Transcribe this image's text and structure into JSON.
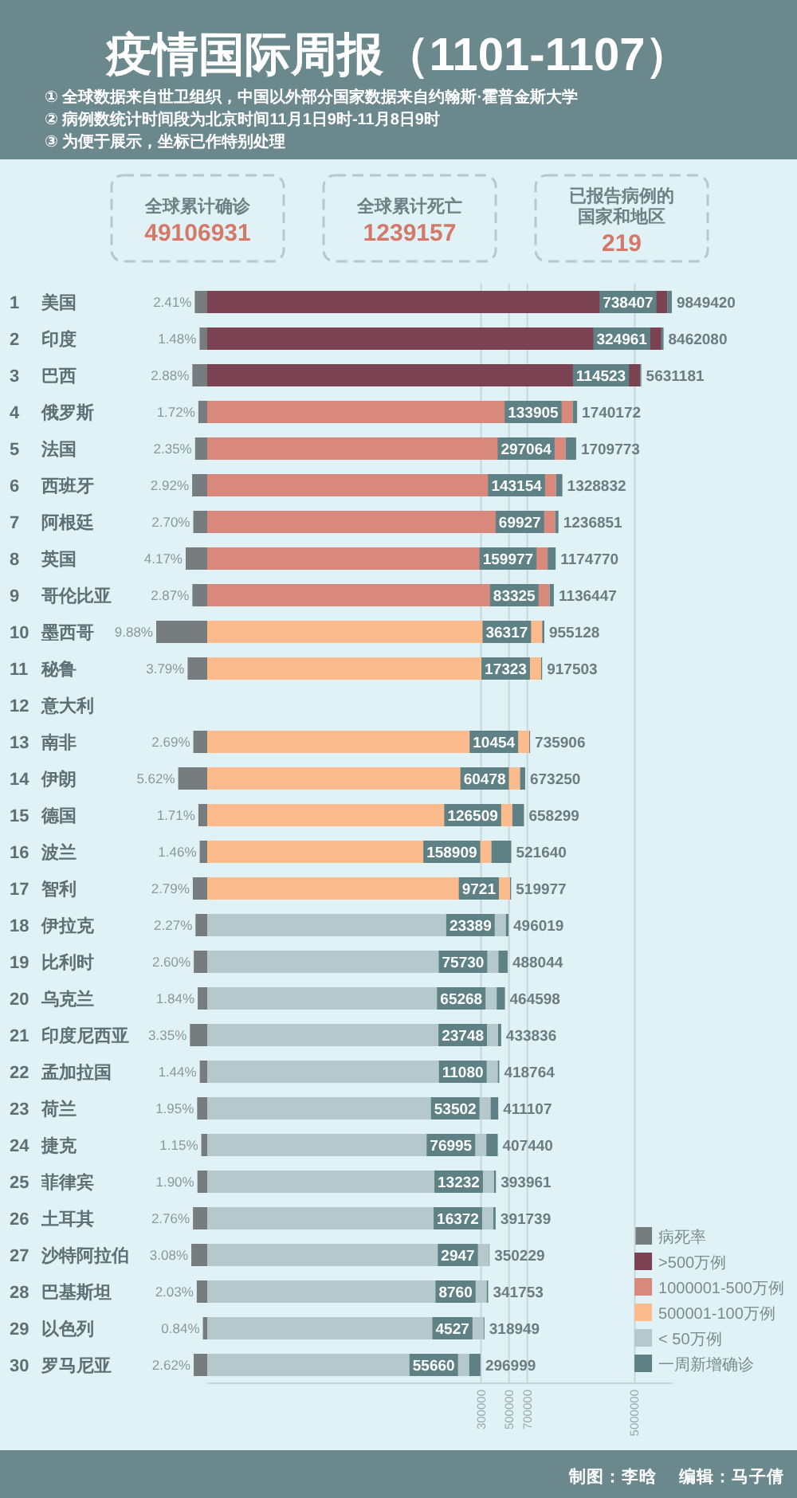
{
  "chart_data": [
    {
      "type": "bar",
      "orientation": "horizontal",
      "title": "疫情国际周报（1101-1107）",
      "annotations": [
        "① 全球数据来自世卫组织，中国以外部分国家数据来自约翰斯·霍普金斯大学",
        "② 病例数统计时间段为北京时间11月1日9时-11月8日9时",
        "③ 为便于展示，坐标已作特别处理",
        "全球累计确诊",
        "49106931",
        "全球累计死亡",
        "1239157",
        "已报告病例的国家和地区",
        "219",
        "制图：李晗",
        "编辑：马子倩"
      ],
      "categories": [
        "1 美国",
        "2 印度",
        "3 巴西",
        "4 俄罗斯",
        "5 法国",
        "6 西班牙",
        "7 阿根廷",
        "8 英国",
        "9 哥伦比亚",
        "10 墨西哥",
        "11 秘鲁",
        "12 意大利",
        "13 南非",
        "14 伊朗",
        "15 德国",
        "16 波兰",
        "17 智利",
        "18 伊拉克",
        "19 比利时",
        "20 乌克兰",
        "21 印度尼西亚",
        "22 孟加拉国",
        "23 荷兰",
        "24 捷克",
        "25 菲律宾",
        "26 土耳其",
        "27 沙特阿拉伯",
        "28 巴基斯坦",
        "29 以色列",
        "30 罗马尼亚"
      ],
      "xlim": [
        9.88,
        0
      ],
      "tick_labels": "y",
      "legend": "bottom right",
      "series": [
        {
          "name": "病死率",
          "color": "#777c7f",
          "values": [
            2.41,
            1.48,
            2.88,
            1.72,
            2.35,
            2.92,
            2.7,
            4.17,
            2.87,
            9.88,
            3.79,
            null,
            2.69,
            5.62,
            1.71,
            1.46,
            2.79,
            2.27,
            2.6,
            1.84,
            3.35,
            1.44,
            1.95,
            1.15,
            1.9,
            2.76,
            3.08,
            2.03,
            0.84,
            2.62
          ],
          "value_labels": [
            "2.41%",
            "1.48%",
            "2.88%",
            "1.72%",
            "2.35%",
            "2.92%",
            "2.70%",
            "4.17%",
            "2.87%",
            "9.88%",
            "3.79%",
            null,
            "2.69%",
            "5.62%",
            "1.71%",
            "1.46%",
            "2.79%",
            "2.27%",
            "2.60%",
            "1.84%",
            "3.35%",
            "1.44%",
            "1.95%",
            "1.15%",
            "1.90%",
            "2.76%",
            "3.08%",
            "2.03%",
            "0.84%",
            "2.62%"
          ]
        }
      ]
    },
    {
      "type": "bar",
      "orientation": "horizontal",
      "stacked": true,
      "categories": [
        null,
        null,
        null,
        null,
        null,
        null,
        null,
        null,
        null,
        null,
        null,
        null,
        null,
        null,
        null,
        null,
        null,
        null,
        null,
        null,
        null,
        null,
        null,
        null,
        null,
        null,
        null,
        null,
        null,
        null
      ],
      "log": "x",
      "xlim": [
        2000,
        10000000
      ],
      "xticks": [
        300000,
        500000,
        700000,
        5000000
      ],
      "grid": "x",
      "legend": "bottom right",
      "series": [
        {
          "name": ">500万例",
          "color": "#7b4351",
          "values": [
            9111013,
            8137119,
            5516658,
            null,
            null,
            null,
            null,
            null,
            null,
            null,
            null,
            null,
            null,
            null,
            null,
            null,
            null,
            null,
            null,
            null,
            null,
            null,
            null,
            null,
            null,
            null,
            null,
            null,
            null,
            null
          ]
        },
        {
          "name": "1000001-500万例",
          "color": "#d9897b",
          "values": [
            null,
            null,
            null,
            1606267,
            1412709,
            1185678,
            1166924,
            1014793,
            1053122,
            null,
            null,
            null,
            null,
            null,
            null,
            null,
            null,
            null,
            null,
            null,
            null,
            null,
            null,
            null,
            null,
            null,
            null,
            null,
            null,
            null
          ]
        },
        {
          "name": "500001-100万例",
          "color": "#fcbb8d",
          "values": [
            null,
            null,
            null,
            null,
            null,
            null,
            null,
            null,
            null,
            918811,
            900180,
            null,
            725452,
            612772,
            531790,
            362731,
            510256,
            null,
            null,
            null,
            null,
            null,
            null,
            null,
            null,
            null,
            null,
            null,
            null,
            null
          ]
        },
        {
          "name": "< 50万例",
          "color": "#b5c8cb",
          "values": [
            null,
            null,
            null,
            null,
            null,
            null,
            null,
            null,
            null,
            null,
            null,
            null,
            null,
            null,
            null,
            null,
            null,
            472630,
            412314,
            399330,
            410088,
            407684,
            357605,
            330445,
            380729,
            375367,
            347282,
            332993,
            314422,
            241339
          ]
        },
        {
          "name": "一周新增确诊",
          "color": "#5e8186",
          "values": [
            738407,
            324961,
            114523,
            133905,
            297064,
            143154,
            69927,
            159977,
            83325,
            36317,
            17323,
            null,
            10454,
            60478,
            126509,
            158909,
            9721,
            23389,
            75730,
            65268,
            23748,
            11080,
            53502,
            76995,
            13232,
            16372,
            2947,
            8760,
            4527,
            55660
          ],
          "value_labels": [
            "738407",
            "324961",
            "114523",
            "133905",
            "297064",
            "143154",
            "69927",
            "159977",
            "83325",
            "36317",
            "17323",
            null,
            "10454",
            "60478",
            "126509",
            "158909",
            "9721",
            "23389",
            "75730",
            "65268",
            "23748",
            "11080",
            "53502",
            "76995",
            "13232",
            "16372",
            "2947",
            "8760",
            "4527",
            "55660"
          ]
        }
      ],
      "totals": [
        "9849420",
        "8462080",
        "5631181",
        "1740172",
        "1709773",
        "1328832",
        "1236851",
        "1174770",
        "1136447",
        "955128",
        "917503",
        null,
        "735906",
        "673250",
        "658299",
        "521640",
        "519977",
        "496019",
        "488044",
        "464598",
        "433836",
        "418764",
        "411107",
        "407440",
        "393961",
        "391739",
        "350229",
        "341753",
        "318949",
        "296999"
      ]
    }
  ]
}
